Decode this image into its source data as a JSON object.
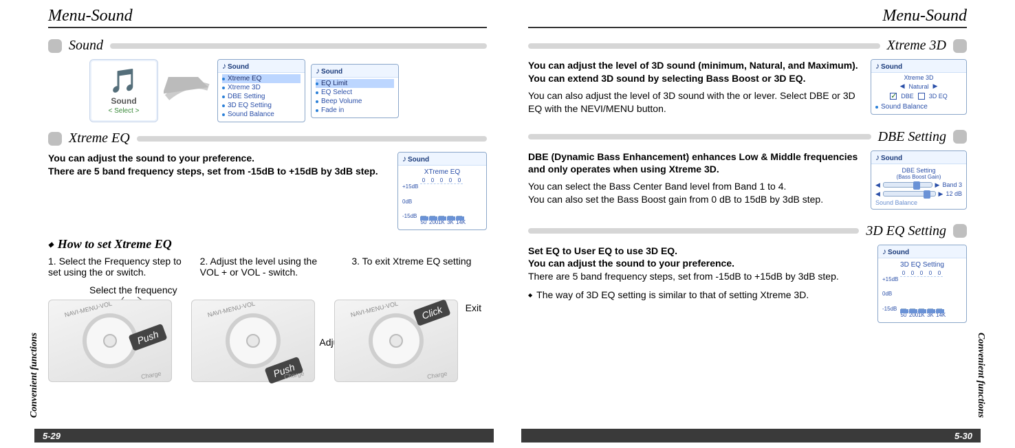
{
  "left": {
    "header": "Menu-Sound",
    "side_label": "Convenient functions",
    "page_num": "5-29",
    "sound": {
      "title": "Sound",
      "card_label": "Sound",
      "card_select": "< Select >",
      "menu1_title": "Sound",
      "menu1_items": [
        "Xtreme EQ",
        "Xtreme 3D",
        "DBE Setting",
        "3D EQ Setting",
        "Sound Balance"
      ],
      "menu1_highlight_index": 0,
      "menu2_title": "Sound",
      "menu2_items": [
        "EQ Limit",
        "EQ Select",
        "Beep Volume",
        "Fade in"
      ],
      "menu2_highlight_index": 0
    },
    "xeq": {
      "title": "Xtreme EQ",
      "intro_bold": "You can adjust the sound to your preference.\nThere are 5 band frequency steps, set from -15dB to +15dB by 3dB step.",
      "screen_title": "Sound",
      "screen_sub": "XTreme EQ",
      "y_labels": [
        "+15dB",
        "0dB",
        "-15dB"
      ],
      "x_labels": [
        "50",
        "200",
        "1K",
        "3K",
        "14K"
      ],
      "top_vals": [
        "0",
        "0",
        "0",
        "0",
        "0"
      ],
      "howto": "How to set Xtreme EQ",
      "step1": "1. Select the Frequency step to set using the      or       switch.",
      "step2": "2. Adjust the level using the VOL + or VOL - switch.",
      "step3": "3. To exit Xtreme EQ setting",
      "cap_select": "Select the frequency",
      "cap_adjust": "Adjust level",
      "cap_exit": "Exit",
      "badge_push": "Push",
      "badge_click": "Click",
      "arc": "NAVI-MENU-VOL",
      "charge": "Charge"
    }
  },
  "right": {
    "header": "Menu-Sound",
    "side_label": "Convenient functions",
    "page_num": "5-30",
    "x3d": {
      "title": "Xtreme 3D",
      "p1_bold": "You can adjust the level of 3D sound (minimum, Natural, and Maximum).\nYou can extend 3D sound by selecting Bass Boost or 3D EQ.",
      "p2": "You can also adjust the level of 3D sound with the      or      lever. Select DBE or 3D EQ with the NEVI/MENU button.",
      "screen_title": "Sound",
      "row1": "Xtreme 3D",
      "row2": "Natural",
      "row3a": "DBE",
      "row3b": "3D EQ",
      "row4": "Sound Balance"
    },
    "dbe": {
      "title": "DBE Setting",
      "p1_bold": "DBE (Dynamic Bass Enhancement) enhances Low & Middle frequencies and only operates when using Xtreme 3D.",
      "p2": "You can select the Bass Center Band level from Band 1 to 4.\nYou can also set the Bass Boost gain from 0 dB to 15dB by 3dB step.",
      "screen_title": "Sound",
      "t1": "DBE Setting",
      "t2": "(Bass Boost Gain)",
      "band_label": "Band 3",
      "gain_label": "12 dB",
      "band_pos_pct": 62,
      "gain_pos_pct": 78,
      "foot": "Sound Balance"
    },
    "eq3d": {
      "title": "3D EQ Setting",
      "p1_bold": "Set EQ to User EQ to use 3D EQ.\nYou can adjust the sound to your preference.",
      "p2": "There are 5 band frequency steps, set from -15dB to +15dB by 3dB step.",
      "p3": "The way of 3D EQ setting is similar to that of setting Xtreme 3D.",
      "screen_title": "Sound",
      "screen_sub": "3D EQ Setting",
      "y_labels": [
        "+15dB",
        "0dB",
        "-15dB"
      ],
      "x_labels": [
        "50",
        "200",
        "1K",
        "3K",
        "14K"
      ],
      "top_vals": [
        "0",
        "0",
        "0",
        "0",
        "0"
      ]
    }
  },
  "colors": {
    "accent": "#2a4fa8"
  }
}
